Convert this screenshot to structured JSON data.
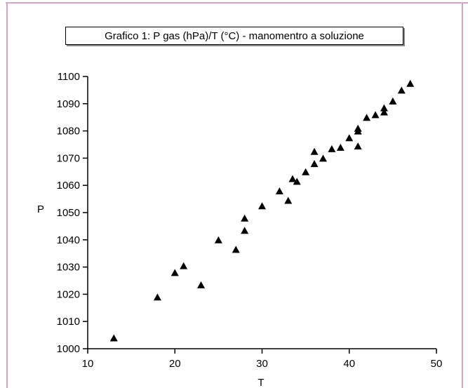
{
  "colors": {
    "frame": "#d7a3c8",
    "axis": "#000000",
    "marker": "#000000",
    "background": "#ffffff"
  },
  "chart_data": {
    "type": "scatter",
    "title": "Grafico 1: P gas (hPa)/T (°C) - manomentro a soluzione",
    "xlabel": "T",
    "ylabel": "P",
    "xlim": [
      10,
      50
    ],
    "ylim": [
      1000,
      1100
    ],
    "xticks": [
      "10",
      "20",
      "30",
      "40",
      "50"
    ],
    "yticks": [
      "1000",
      "1010",
      "1020",
      "1030",
      "1040",
      "1050",
      "1060",
      "1070",
      "1080",
      "1090",
      "1100"
    ],
    "marker": "triangle",
    "grid": false,
    "series": [
      {
        "points": [
          [
            13,
            1004
          ],
          [
            18,
            1019
          ],
          [
            20,
            1028
          ],
          [
            21,
            1030.5
          ],
          [
            23,
            1023.5
          ],
          [
            25,
            1040
          ],
          [
            27,
            1036.5
          ],
          [
            28,
            1043.5
          ],
          [
            28,
            1048
          ],
          [
            30,
            1052.5
          ],
          [
            32,
            1058
          ],
          [
            33,
            1054.5
          ],
          [
            33.5,
            1062.5
          ],
          [
            34,
            1061.5
          ],
          [
            35,
            1065
          ],
          [
            36,
            1068
          ],
          [
            36,
            1072.5
          ],
          [
            37,
            1070
          ],
          [
            38,
            1073.5
          ],
          [
            39,
            1074
          ],
          [
            40,
            1077.5
          ],
          [
            41,
            1074.5
          ],
          [
            41,
            1080
          ],
          [
            41,
            1081
          ],
          [
            42,
            1085
          ],
          [
            43,
            1086
          ],
          [
            44,
            1087
          ],
          [
            44,
            1088.5
          ],
          [
            45,
            1091
          ],
          [
            46,
            1095
          ],
          [
            47,
            1097.5
          ]
        ]
      }
    ]
  }
}
